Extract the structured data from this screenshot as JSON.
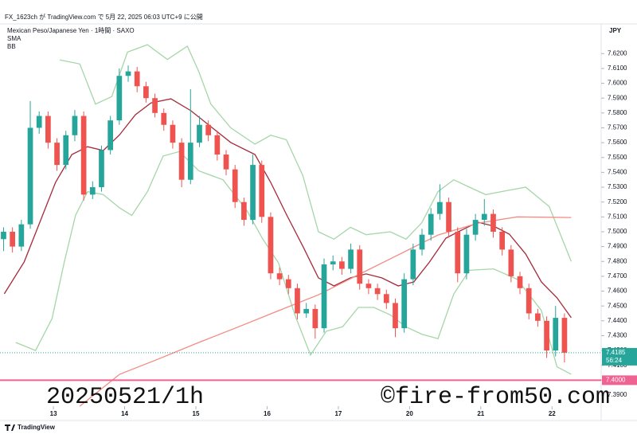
{
  "header": "FX_1623ch が TradingView.com で 5月 22, 2025 06:03 UTC+9 に公開",
  "footer": "TradingView",
  "chart_data": {
    "type": "candlestick",
    "title": "Mexican Peso/Japanese Yen · 1時間 · SAXO",
    "legend": [
      "SMA",
      "BB"
    ],
    "currency": "JPY",
    "watermarks": [
      "20250521/1h",
      "©fire-from50.com"
    ],
    "up_color": "#26a69a",
    "down_color": "#ef5350",
    "x": [
      -0.7,
      -0.575,
      -0.45,
      -0.325,
      -0.2,
      -0.075,
      0.05,
      0.175,
      0.3,
      0.425,
      0.55,
      0.675,
      0.8,
      0.925,
      1.05,
      1.175,
      1.3,
      1.425,
      1.55,
      1.675,
      1.8,
      1.925,
      2.05,
      2.175,
      2.3,
      2.425,
      2.55,
      2.675,
      2.8,
      2.925,
      3.05,
      3.175,
      3.3,
      3.425,
      3.55,
      3.675,
      3.8,
      3.925,
      4.05,
      4.175,
      4.3,
      4.425,
      4.55,
      4.675,
      4.8,
      4.925,
      5.05,
      5.175,
      5.3,
      5.425,
      5.55,
      5.675,
      5.8,
      5.925,
      6.05,
      6.175,
      6.3,
      6.425,
      6.55,
      6.675,
      6.8,
      6.925,
      7.05,
      7.175
    ],
    "open": [
      7.495,
      7.5,
      7.49,
      7.505,
      7.57,
      7.578,
      7.56,
      7.545,
      7.565,
      7.578,
      7.525,
      7.53,
      7.555,
      7.575,
      7.605,
      7.608,
      7.598,
      7.59,
      7.58,
      7.572,
      7.56,
      7.535,
      7.56,
      7.572,
      7.565,
      7.552,
      7.542,
      7.52,
      7.508,
      7.545,
      7.51,
      7.472,
      7.468,
      7.462,
      7.445,
      7.448,
      7.435,
      7.478,
      7.48,
      7.475,
      7.488,
      7.465,
      7.462,
      7.458,
      7.452,
      7.435,
      7.468,
      7.488,
      7.498,
      7.512,
      7.52,
      7.5,
      7.472,
      7.498,
      7.508,
      7.512,
      7.5,
      7.488,
      7.47,
      7.462,
      7.445,
      7.44,
      7.42,
      7.442
    ],
    "high": [
      7.503,
      7.503,
      7.508,
      7.588,
      7.581,
      7.581,
      7.563,
      7.568,
      7.582,
      7.581,
      7.534,
      7.558,
      7.578,
      7.61,
      7.612,
      7.611,
      7.601,
      7.593,
      7.583,
      7.575,
      7.563,
      7.596,
      7.578,
      7.575,
      7.568,
      7.555,
      7.545,
      7.523,
      7.552,
      7.548,
      7.513,
      7.476,
      7.471,
      7.465,
      7.452,
      7.451,
      7.482,
      7.484,
      7.483,
      7.492,
      7.491,
      7.468,
      7.465,
      7.461,
      7.455,
      7.472,
      7.492,
      7.502,
      7.516,
      7.532,
      7.523,
      7.503,
      7.502,
      7.512,
      7.522,
      7.515,
      7.503,
      7.491,
      7.473,
      7.465,
      7.448,
      7.443,
      7.45,
      7.445
    ],
    "low": [
      7.487,
      7.486,
      7.487,
      7.502,
      7.566,
      7.556,
      7.541,
      7.542,
      7.561,
      7.521,
      7.522,
      7.527,
      7.552,
      7.572,
      7.601,
      7.594,
      7.587,
      7.577,
      7.568,
      7.556,
      7.53,
      7.532,
      7.557,
      7.561,
      7.548,
      7.538,
      7.516,
      7.504,
      7.505,
      7.506,
      7.468,
      7.464,
      7.458,
      7.441,
      7.442,
      7.428,
      7.432,
      7.474,
      7.471,
      7.472,
      7.461,
      7.458,
      7.454,
      7.448,
      7.429,
      7.432,
      7.464,
      7.484,
      7.494,
      7.508,
      7.496,
      7.466,
      7.468,
      7.494,
      7.504,
      7.496,
      7.484,
      7.466,
      7.458,
      7.441,
      7.436,
      7.415,
      7.416,
      7.412
    ],
    "close": [
      7.5,
      7.49,
      7.505,
      7.57,
      7.578,
      7.56,
      7.545,
      7.565,
      7.578,
      7.525,
      7.53,
      7.555,
      7.575,
      7.605,
      7.608,
      7.598,
      7.59,
      7.58,
      7.572,
      7.56,
      7.535,
      7.56,
      7.572,
      7.565,
      7.552,
      7.542,
      7.52,
      7.508,
      7.545,
      7.51,
      7.472,
      7.468,
      7.462,
      7.445,
      7.448,
      7.435,
      7.478,
      7.48,
      7.475,
      7.488,
      7.465,
      7.462,
      7.458,
      7.452,
      7.435,
      7.468,
      7.488,
      7.498,
      7.512,
      7.52,
      7.5,
      7.472,
      7.498,
      7.508,
      7.512,
      7.5,
      7.488,
      7.47,
      7.462,
      7.445,
      7.44,
      7.42,
      7.442,
      7.4185
    ],
    "lines": [
      {
        "color": "#a5d6a7",
        "x": [
          0.09,
          0.37,
          0.59,
          0.82,
          1.04,
          1.32,
          1.6,
          1.88,
          2.04,
          2.21,
          2.49,
          2.83,
          3.05,
          3.27,
          3.5,
          3.72,
          3.94,
          4.17,
          4.39,
          4.73,
          4.95,
          5.17,
          5.4,
          5.62,
          5.84,
          6.07,
          6.29,
          6.63,
          6.96,
          7.27
        ],
        "values": [
          7.6157,
          7.613,
          7.586,
          7.591,
          7.621,
          7.626,
          7.616,
          7.625,
          7.608,
          7.586,
          7.57,
          7.559,
          7.565,
          7.562,
          7.538,
          7.5,
          7.495,
          7.503,
          7.498,
          7.5,
          7.495,
          7.506,
          7.527,
          7.535,
          7.53,
          7.525,
          7.527,
          7.53,
          7.517,
          7.48
        ]
      },
      {
        "color": "#a5d6a7",
        "x": [
          -0.53,
          -0.25,
          -0.02,
          0.15,
          0.31,
          0.48,
          0.7,
          0.93,
          1.1,
          1.32,
          1.54,
          1.77,
          2.04,
          2.38,
          2.72,
          2.94,
          3.16,
          3.39,
          3.61,
          3.83,
          4.06,
          4.28,
          4.5,
          4.73,
          4.95,
          5.17,
          5.4,
          5.62,
          5.84,
          6.18,
          6.51,
          6.85,
          7.07,
          7.27
        ],
        "values": [
          7.4254,
          7.42,
          7.4414,
          7.479,
          7.511,
          7.527,
          7.525,
          7.516,
          7.511,
          7.527,
          7.551,
          7.554,
          7.541,
          7.535,
          7.514,
          7.495,
          7.479,
          7.444,
          7.417,
          7.433,
          7.436,
          7.449,
          7.449,
          7.444,
          7.436,
          7.431,
          7.428,
          7.458,
          7.474,
          7.475,
          7.468,
          7.447,
          7.409,
          7.404
        ]
      },
      {
        "color": "#a52a3a",
        "x": [
          -0.69,
          -0.41,
          -0.19,
          0.03,
          0.26,
          0.48,
          0.7,
          0.93,
          1.15,
          1.37,
          1.65,
          1.93,
          2.21,
          2.49,
          2.83,
          3.05,
          3.27,
          3.5,
          3.72,
          3.94,
          4.17,
          4.39,
          4.61,
          4.84,
          5.06,
          5.28,
          5.51,
          5.73,
          5.96,
          6.18,
          6.4,
          6.63,
          6.85,
          7.07,
          7.27
        ],
        "values": [
          7.4582,
          7.4797,
          7.5065,
          7.5333,
          7.552,
          7.5573,
          7.5547,
          7.5654,
          7.5788,
          7.5868,
          7.5895,
          7.5815,
          7.5708,
          7.5601,
          7.552,
          7.5333,
          7.5118,
          7.4904,
          7.4689,
          7.4635,
          7.4689,
          7.4716,
          7.4689,
          7.4635,
          7.4662,
          7.4796,
          7.4957,
          7.5011,
          7.5064,
          7.5038,
          7.4984,
          7.485,
          7.4662,
          7.4555,
          7.4421
        ]
      },
      {
        "color": "#f28b82",
        "x": [
          0.37,
          0.93,
          1.49,
          2.04,
          2.6,
          3.16,
          3.72,
          4.28,
          4.84,
          5.4,
          5.96,
          6.51,
          7.27
        ],
        "values": [
          7.3825,
          7.404,
          7.4146,
          7.4254,
          7.436,
          7.4468,
          7.4575,
          7.471,
          7.4844,
          7.4978,
          7.5058,
          7.51,
          7.5096
        ]
      }
    ],
    "hline": {
      "value": 7.4,
      "label": "7.4000",
      "color": "#f06292"
    },
    "last_price": {
      "value": 7.4185,
      "label": "7.4185",
      "countdown": "56:24",
      "color": "#26a69a"
    },
    "xlim": [
      -0.75,
      7.69
    ],
    "xticks": [
      {
        "value": 0,
        "label": "13"
      },
      {
        "value": 1,
        "label": "14"
      },
      {
        "value": 2,
        "label": "15"
      },
      {
        "value": 3,
        "label": "16"
      },
      {
        "value": 4,
        "label": "17"
      },
      {
        "value": 5,
        "label": "20"
      },
      {
        "value": 6,
        "label": "21"
      },
      {
        "value": 7,
        "label": "22"
      }
    ],
    "ylim": [
      7.3825,
      7.64
    ],
    "yticks": [
      {
        "value": 7.39,
        "label": "7.3900"
      },
      {
        "value": 7.4,
        "label": "7.4000"
      },
      {
        "value": 7.41,
        "label": "7.4100"
      },
      {
        "value": 7.42,
        "label": "7.4200"
      },
      {
        "value": 7.43,
        "label": "7.4300"
      },
      {
        "value": 7.44,
        "label": "7.4400"
      },
      {
        "value": 7.45,
        "label": "7.4500"
      },
      {
        "value": 7.46,
        "label": "7.4600"
      },
      {
        "value": 7.47,
        "label": "7.4700"
      },
      {
        "value": 7.48,
        "label": "7.4800"
      },
      {
        "value": 7.49,
        "label": "7.4900"
      },
      {
        "value": 7.5,
        "label": "7.5000"
      },
      {
        "value": 7.51,
        "label": "7.5100"
      },
      {
        "value": 7.52,
        "label": "7.5200"
      },
      {
        "value": 7.53,
        "label": "7.5300"
      },
      {
        "value": 7.54,
        "label": "7.5400"
      },
      {
        "value": 7.55,
        "label": "7.5500"
      },
      {
        "value": 7.56,
        "label": "7.5600"
      },
      {
        "value": 7.57,
        "label": "7.5700"
      },
      {
        "value": 7.58,
        "label": "7.5800"
      },
      {
        "value": 7.59,
        "label": "7.5900"
      },
      {
        "value": 7.6,
        "label": "7.6000"
      },
      {
        "value": 7.61,
        "label": "7.6100"
      },
      {
        "value": 7.62,
        "label": "7.6200"
      }
    ],
    "grid": false
  }
}
